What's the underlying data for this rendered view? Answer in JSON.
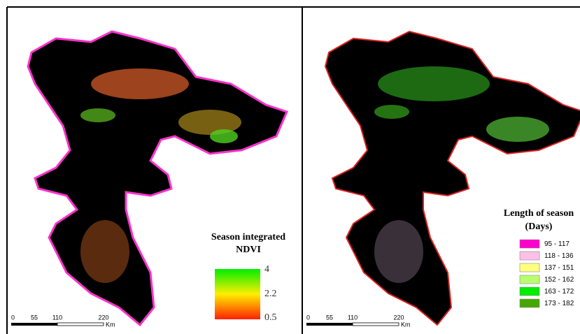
{
  "left_panel": {
    "legend_title_lines": [
      "Season integrated",
      "NDVI"
    ],
    "gradient_labels": [
      "4",
      "2.2",
      "0.5"
    ],
    "scale_labels": [
      "0",
      "55",
      "110",
      "220"
    ],
    "scale_unit": "Km"
  },
  "right_panel": {
    "legend_title_lines": [
      "Length of season",
      "(Days)"
    ],
    "classes": [
      {
        "label": "95 - 117",
        "color": "#ff00cc"
      },
      {
        "label": "118 - 136",
        "color": "#ffc0e8"
      },
      {
        "label": "137 - 151",
        "color": "#ffff80"
      },
      {
        "label": "152 - 162",
        "color": "#b8ff70"
      },
      {
        "label": "163 - 172",
        "color": "#00ee00"
      },
      {
        "label": "173 - 182",
        "color": "#44a800"
      }
    ],
    "scale_labels": [
      "0",
      "55",
      "110",
      "220"
    ],
    "scale_unit": "Km"
  }
}
